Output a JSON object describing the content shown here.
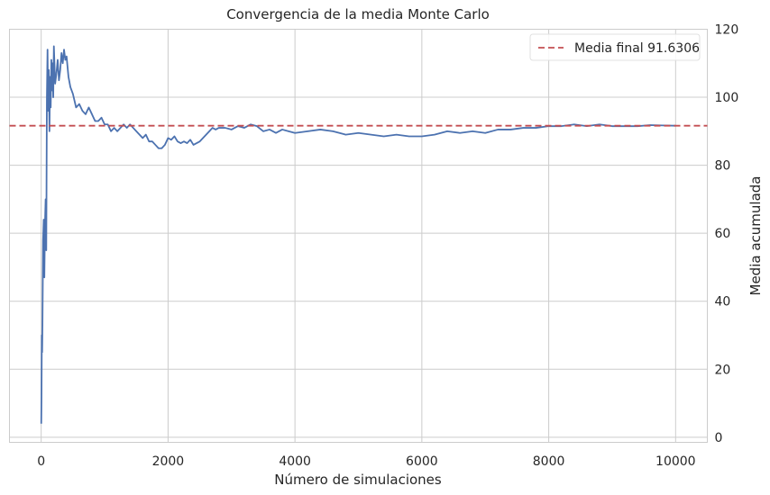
{
  "chart_data": {
    "type": "line",
    "title": "Convergencia de la media Monte Carlo",
    "xlabel": "Número de simulaciones",
    "ylabel": "Media acumulada",
    "xlim": [
      -500,
      10500
    ],
    "ylim": [
      -1.5,
      120
    ],
    "xticks": [
      0,
      2000,
      4000,
      6000,
      8000,
      10000
    ],
    "xtick_labels": [
      "0",
      "2000",
      "4000",
      "6000",
      "8000",
      "10000"
    ],
    "yticks": [
      0,
      20,
      40,
      60,
      80,
      100,
      120
    ],
    "ytick_labels": [
      "0",
      "20",
      "40",
      "60",
      "80",
      "100",
      "120"
    ],
    "y_axis_side": "right",
    "grid": true,
    "legend_position": "top-right",
    "colors": {
      "line": "#4c72b0",
      "reference": "#c44e52",
      "grid": "#cccccc",
      "frame": "#cccccc"
    },
    "series": [
      {
        "style": "solid",
        "x": [
          1,
          5,
          10,
          15,
          20,
          30,
          40,
          50,
          60,
          70,
          80,
          90,
          100,
          110,
          120,
          130,
          140,
          150,
          160,
          170,
          180,
          190,
          200,
          220,
          240,
          260,
          280,
          300,
          320,
          340,
          360,
          380,
          400,
          430,
          460,
          500,
          550,
          600,
          650,
          700,
          750,
          800,
          850,
          900,
          950,
          1000,
          1050,
          1100,
          1150,
          1200,
          1250,
          1300,
          1350,
          1400,
          1450,
          1500,
          1550,
          1600,
          1650,
          1700,
          1750,
          1800,
          1850,
          1900,
          1950,
          2000,
          2050,
          2100,
          2150,
          2200,
          2250,
          2300,
          2350,
          2400,
          2450,
          2500,
          2550,
          2600,
          2650,
          2700,
          2750,
          2800,
          2900,
          3000,
          3100,
          3200,
          3300,
          3400,
          3500,
          3600,
          3700,
          3800,
          3900,
          4000,
          4200,
          4400,
          4600,
          4800,
          5000,
          5200,
          5400,
          5600,
          5800,
          6000,
          6200,
          6400,
          6600,
          6800,
          7000,
          7200,
          7400,
          7600,
          7800,
          8000,
          8200,
          8400,
          8600,
          8800,
          9000,
          9200,
          9400,
          9600,
          9800,
          10000
        ],
        "y": [
          4,
          12,
          30,
          25,
          33,
          58,
          64,
          47,
          63,
          70,
          55,
          100,
          114,
          96,
          108,
          90,
          106,
          97,
          111,
          102,
          110,
          100,
          115,
          104,
          107,
          111,
          105,
          108,
          113,
          110,
          114,
          111,
          112,
          106,
          103,
          101,
          97,
          98,
          96,
          95,
          97,
          95,
          93,
          93,
          94,
          92,
          92,
          90,
          91,
          90,
          91,
          92,
          91,
          92,
          91,
          90,
          89,
          88,
          89,
          87,
          87,
          86,
          85,
          85,
          86,
          88,
          87.5,
          88.5,
          87,
          86.5,
          87,
          86.5,
          87.5,
          86,
          86.5,
          87,
          88,
          89,
          90,
          91,
          90.5,
          91,
          91,
          90.5,
          91.5,
          91,
          92,
          91.5,
          90,
          90.5,
          89.5,
          90.5,
          90,
          89.5,
          90,
          90.5,
          90,
          89,
          89.5,
          89,
          88.5,
          89,
          88.5,
          88.5,
          89,
          90,
          89.5,
          90,
          89.5,
          90.5,
          90.5,
          91,
          91,
          91.5,
          91.5,
          92,
          91.5,
          92,
          91.5,
          91.5,
          91.5,
          91.8,
          91.7,
          91.63
        ]
      }
    ],
    "reference_line": {
      "label": "Media final 91.6306",
      "y": 91.6306,
      "style": "dashed"
    }
  }
}
